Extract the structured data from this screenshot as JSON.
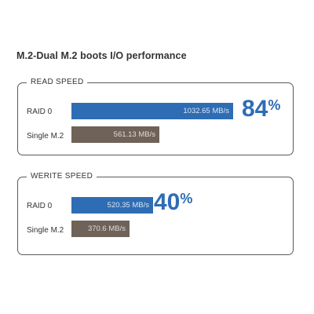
{
  "title": "M.2-Dual M.2 boots I/O performance",
  "colors": {
    "raid": "#2e6db4",
    "single": "#6f6258",
    "percent": "#2e6db4"
  },
  "chart_data": [
    {
      "type": "bar",
      "title": "READ SPEED",
      "unit": "MB/s",
      "categories": [
        "RAID 0",
        "Single M.2"
      ],
      "values": [
        1032.65,
        561.13
      ],
      "value_labels": [
        "1032.65 MB/s",
        "561.13 MB/s"
      ],
      "highlight": {
        "number": "84",
        "sign": "%"
      }
    },
    {
      "type": "bar",
      "title": "WERITE SPEED",
      "unit": "MB/s",
      "categories": [
        "RAID 0",
        "Single M.2"
      ],
      "values": [
        520.35,
        370.6
      ],
      "value_labels": [
        "520.35 MB/s",
        "370.6 MB/s"
      ],
      "highlight": {
        "number": "40",
        "sign": "%"
      }
    }
  ]
}
